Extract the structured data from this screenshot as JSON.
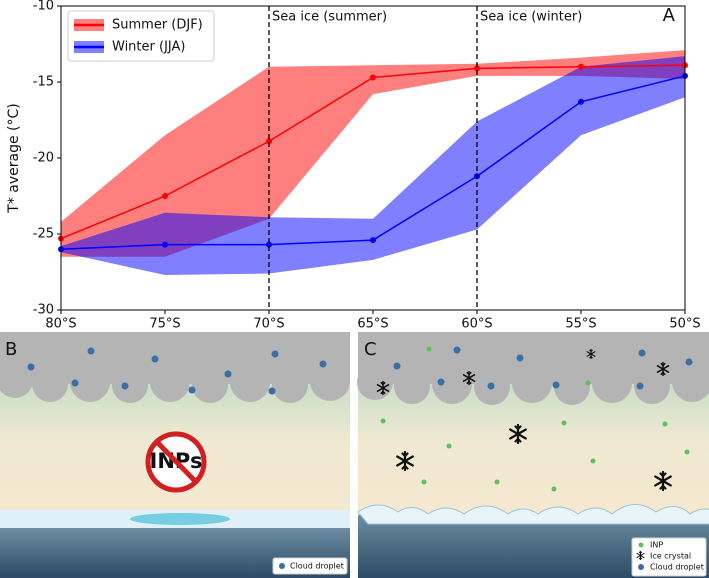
{
  "chart_data": {
    "type": "line",
    "panel_label": "A",
    "ylabel": "T* average (°C)",
    "x": [
      -80,
      -75,
      -70,
      -65,
      -60,
      -55,
      -50
    ],
    "xlim": [
      -80,
      -50
    ],
    "xticks": [
      {
        "value": -80,
        "label": "80°S"
      },
      {
        "value": -75,
        "label": "75°S"
      },
      {
        "value": -70,
        "label": "70°S"
      },
      {
        "value": -65,
        "label": "65°S"
      },
      {
        "value": -60,
        "label": "60°S"
      },
      {
        "value": -55,
        "label": "55°S"
      },
      {
        "value": -50,
        "label": "50°S"
      }
    ],
    "ylim": [
      -30,
      -10
    ],
    "yticks": [
      -30,
      -25,
      -20,
      -15,
      -10
    ],
    "legend": "upper left",
    "series": [
      {
        "name": "Summer (DJF)",
        "color": "#ff0000",
        "values": [
          -25.3,
          -22.5,
          -18.9,
          -14.7,
          -14.1,
          -14.0,
          -13.9
        ],
        "lower": [
          -26.5,
          -26.5,
          -24.0,
          -15.8,
          -14.6,
          -14.6,
          -14.8
        ],
        "upper": [
          -24.2,
          -18.5,
          -14.0,
          -13.9,
          -13.8,
          -13.4,
          -12.9
        ]
      },
      {
        "name": "Winter (JJA)",
        "color": "#0000ff",
        "values": [
          -26.0,
          -25.7,
          -25.7,
          -25.4,
          -21.2,
          -16.3,
          -14.6
        ],
        "lower": [
          -26.2,
          -27.7,
          -27.6,
          -26.7,
          -24.7,
          -18.5,
          -16.0
        ],
        "upper": [
          -25.8,
          -23.6,
          -23.9,
          -24.0,
          -17.6,
          -14.0,
          -13.3
        ]
      }
    ],
    "annotations": [
      {
        "x": -70,
        "text": "Sea ice (summer)"
      },
      {
        "x": -60,
        "text": "Sea ice (winter)"
      }
    ]
  },
  "panels": {
    "b": {
      "label": "B",
      "sign": "INPs",
      "legend": [
        "Cloud droplet"
      ]
    },
    "c": {
      "label": "C",
      "legend": [
        "INP",
        "Ice crystal",
        "Cloud droplet"
      ]
    }
  }
}
